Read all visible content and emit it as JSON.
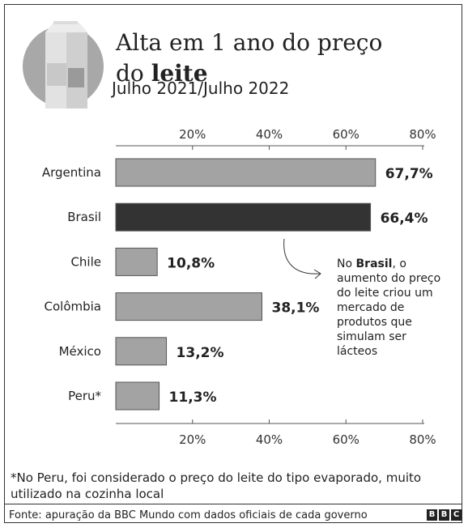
{
  "title": {
    "line1": "Alta em 1 ano do preço",
    "line2_prefix": "do ",
    "line2_bold": "leite"
  },
  "subtitle": "Julho 2021/Julho 2022",
  "chart_data": {
    "type": "bar",
    "orientation": "horizontal",
    "categories": [
      "Argentina",
      "Brasil",
      "Chile",
      "Colômbia",
      "México",
      "Peru*"
    ],
    "values": [
      67.7,
      66.4,
      10.8,
      38.1,
      13.2,
      11.3
    ],
    "value_labels": [
      "67,7%",
      "66,4%",
      "10,8%",
      "38,1%",
      "13,2%",
      "11,3%"
    ],
    "highlight": "Brasil",
    "xlim": [
      0,
      80
    ],
    "ticks": [
      20,
      40,
      60,
      80
    ],
    "tick_labels": [
      "20%",
      "40%",
      "60%",
      "80%"
    ],
    "grid": false,
    "colors": {
      "bar": "#a3a3a3",
      "highlight": "#333333"
    },
    "annotation": {
      "target": "Brasil",
      "lines": [
        [
          {
            "t": "No "
          },
          {
            "t": "Brasil",
            "b": true
          },
          {
            "t": ", o"
          }
        ],
        [
          {
            "t": "aumento do preço"
          }
        ],
        [
          {
            "t": "do leite criou um"
          }
        ],
        [
          {
            "t": "mercado de"
          }
        ],
        [
          {
            "t": "produtos que"
          }
        ],
        [
          {
            "t": "simulam ser"
          }
        ],
        [
          {
            "t": "lácteos"
          }
        ]
      ]
    }
  },
  "footnote": "*No Peru, foi considerado o preço do leite do tipo evaporado, muito utilizado na cozinha local",
  "source": "Fonte: apuração da BBC Mundo com dados oficiais de cada governo",
  "logo": {
    "letters": [
      "B",
      "B",
      "C"
    ],
    "icon": "milk-carton-icon"
  }
}
